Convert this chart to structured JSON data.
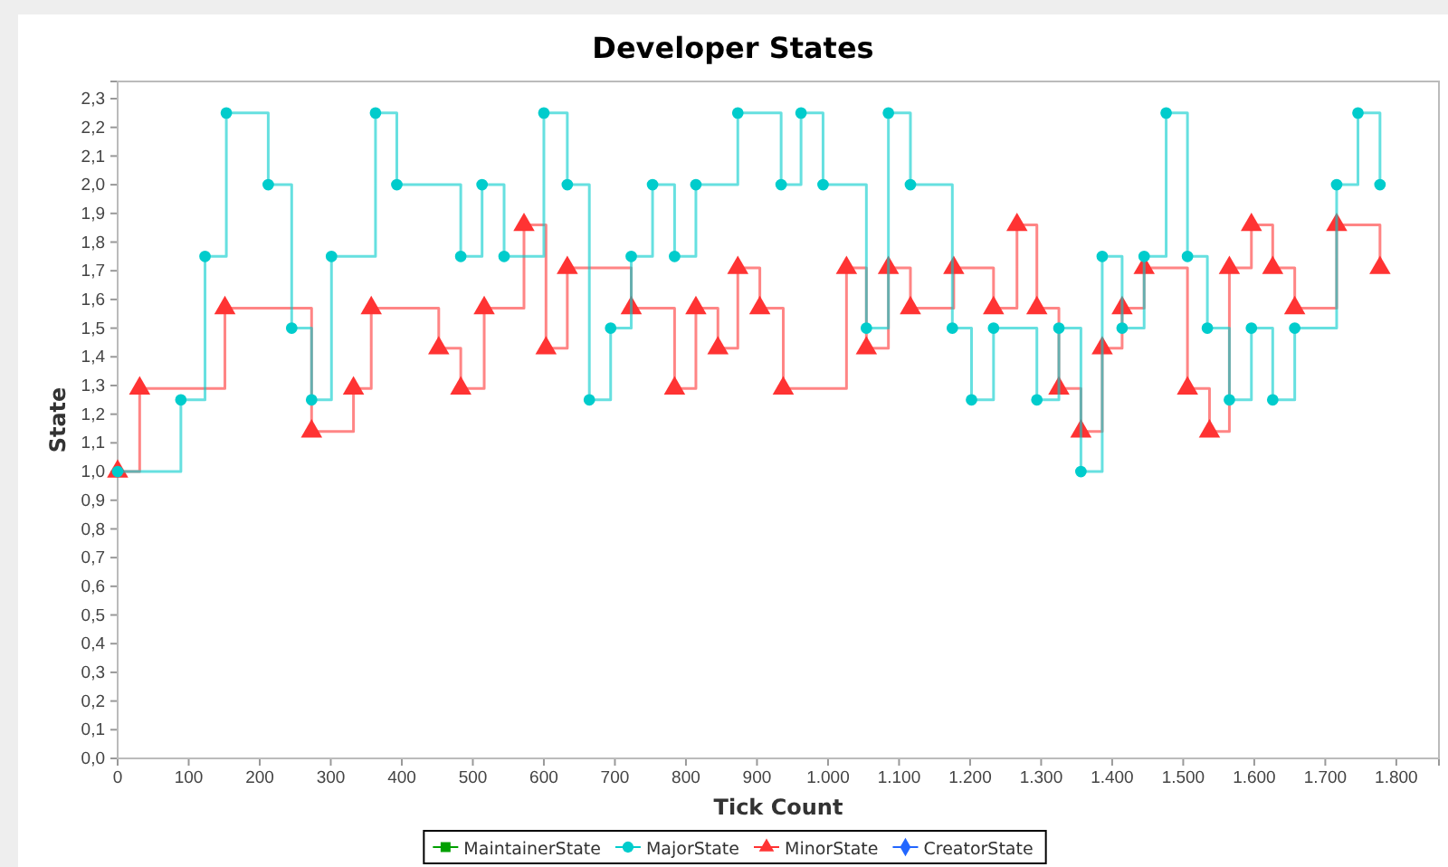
{
  "chart_data": {
    "type": "step",
    "title": "Developer States",
    "xlabel": "Tick Count",
    "ylabel": "State",
    "legend": "bottom",
    "xlim": [
      0,
      1860
    ],
    "ylim": [
      0,
      2.36
    ],
    "xticks": [
      0,
      100,
      200,
      300,
      400,
      500,
      600,
      700,
      800,
      900,
      {
        "value": 1000,
        "label": "1.000"
      },
      {
        "value": 1100,
        "label": "1.100"
      },
      {
        "value": 1200,
        "label": "1.200"
      },
      {
        "value": 1300,
        "label": "1.300"
      },
      {
        "value": 1400,
        "label": "1.400"
      },
      {
        "value": 1500,
        "label": "1.500"
      },
      {
        "value": 1600,
        "label": "1.600"
      },
      {
        "value": 1700,
        "label": "1.700"
      },
      {
        "value": 1800,
        "label": "1.800"
      }
    ],
    "yticks": [
      {
        "value": 0,
        "label": "0,0"
      },
      {
        "value": 0.1,
        "label": "0,1"
      },
      {
        "value": 0.2,
        "label": "0,2"
      },
      {
        "value": 0.3,
        "label": "0,3"
      },
      {
        "value": 0.4,
        "label": "0,4"
      },
      {
        "value": 0.5,
        "label": "0,5"
      },
      {
        "value": 0.6,
        "label": "0,6"
      },
      {
        "value": 0.7,
        "label": "0,7"
      },
      {
        "value": 0.8,
        "label": "0,8"
      },
      {
        "value": 0.9,
        "label": "0,9"
      },
      {
        "value": 1,
        "label": "1,0"
      },
      {
        "value": 1.1,
        "label": "1,1"
      },
      {
        "value": 1.2,
        "label": "1,2"
      },
      {
        "value": 1.3,
        "label": "1,3"
      },
      {
        "value": 1.4,
        "label": "1,4"
      },
      {
        "value": 1.5,
        "label": "1,5"
      },
      {
        "value": 1.6,
        "label": "1,6"
      },
      {
        "value": 1.7,
        "label": "1,7"
      },
      {
        "value": 1.8,
        "label": "1,8"
      },
      {
        "value": 1.9,
        "label": "1,9"
      },
      {
        "value": 2,
        "label": "2,0"
      },
      {
        "value": 2.1,
        "label": "2,1"
      },
      {
        "value": 2.2,
        "label": "2,2"
      },
      {
        "value": 2.3,
        "label": "2,3"
      }
    ],
    "series": [
      {
        "name": "MaintainerState",
        "color": "#00a000",
        "marker": "square"
      },
      {
        "name": "MajorState",
        "color": "#00cccc",
        "marker": "circle",
        "x": [
          0,
          89,
          123,
          153,
          212,
          245,
          273,
          301,
          363,
          393,
          483,
          513,
          544,
          600,
          633,
          664,
          694,
          723,
          753,
          784,
          814,
          873,
          934,
          962,
          993,
          1054,
          1085,
          1116,
          1175,
          1202,
          1233,
          1294,
          1325,
          1356,
          1386,
          1414,
          1445,
          1476,
          1506,
          1534,
          1565,
          1596,
          1626,
          1657,
          1716,
          1746,
          1777
        ],
        "values": [
          1.0,
          1.25,
          1.75,
          2.25,
          2.0,
          1.5,
          1.25,
          1.75,
          2.25,
          2.0,
          1.75,
          2.0,
          1.75,
          2.25,
          2.0,
          1.25,
          1.5,
          1.75,
          2.0,
          1.75,
          2.0,
          2.25,
          2.0,
          2.25,
          2.0,
          1.5,
          2.25,
          2.0,
          1.5,
          1.25,
          1.5,
          1.25,
          1.5,
          1.0,
          1.75,
          1.5,
          1.75,
          2.25,
          1.75,
          1.5,
          1.25,
          1.5,
          1.25,
          1.5,
          2.0,
          2.25,
          2.0
        ]
      },
      {
        "name": "MinorState",
        "color": "#ff3333",
        "marker": "triangle",
        "x": [
          0,
          31,
          151,
          273,
          332,
          357,
          452,
          483,
          516,
          572,
          603,
          633,
          723,
          784,
          814,
          845,
          873,
          904,
          937,
          1026,
          1054,
          1085,
          1116,
          1177,
          1233,
          1266,
          1294,
          1325,
          1356,
          1386,
          1414,
          1445,
          1506,
          1537,
          1565,
          1596,
          1626,
          1657,
          1716,
          1777
        ],
        "values": [
          1.0,
          1.29,
          1.57,
          1.14,
          1.29,
          1.57,
          1.43,
          1.29,
          1.57,
          1.86,
          1.43,
          1.71,
          1.57,
          1.29,
          1.57,
          1.43,
          1.71,
          1.57,
          1.29,
          1.71,
          1.43,
          1.71,
          1.57,
          1.71,
          1.57,
          1.86,
          1.57,
          1.29,
          1.14,
          1.43,
          1.57,
          1.71,
          1.29,
          1.14,
          1.71,
          1.86,
          1.71,
          1.57,
          1.86,
          1.71
        ]
      },
      {
        "name": "CreatorState",
        "color": "#2266ff",
        "marker": "diamond"
      }
    ]
  }
}
